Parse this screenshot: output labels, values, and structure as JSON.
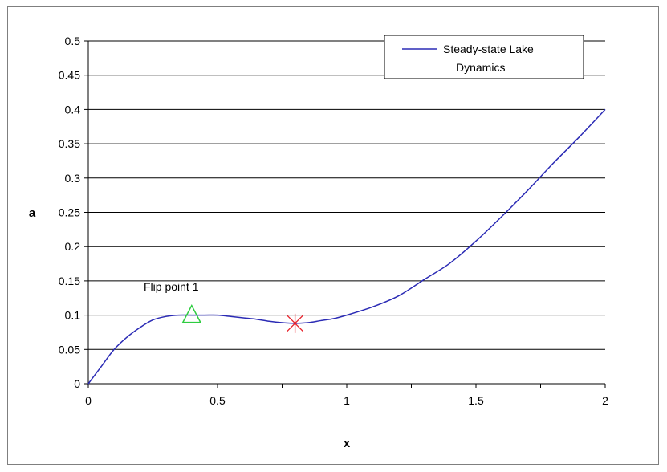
{
  "chart_data": {
    "type": "line",
    "title": "",
    "xlabel": "x",
    "ylabel": "a",
    "xlim": [
      0,
      2
    ],
    "ylim": [
      0,
      0.5
    ],
    "x_ticks": [
      "0",
      "0.5",
      "1",
      "1.5",
      "2"
    ],
    "y_ticks": [
      "0",
      "0.05",
      "0.1",
      "0.15",
      "0.2",
      "0.25",
      "0.3",
      "0.35",
      "0.4",
      "0.45",
      "0.5"
    ],
    "grid": "horizontal",
    "legend": {
      "placement": "top-right",
      "entries": [
        "Steady-state Lake",
        "Dynamics"
      ]
    },
    "series": [
      {
        "name": "Steady-state Lake Dynamics",
        "color": "#2b2bb5",
        "x": [
          0,
          0.05,
          0.1,
          0.15,
          0.2,
          0.25,
          0.3,
          0.35,
          0.4,
          0.45,
          0.5,
          0.55,
          0.6,
          0.65,
          0.7,
          0.75,
          0.8,
          0.85,
          0.9,
          0.95,
          1.0,
          1.1,
          1.2,
          1.3,
          1.4,
          1.5,
          1.6,
          1.7,
          1.8,
          1.9,
          2.0
        ],
        "y": [
          0,
          0.025,
          0.05,
          0.068,
          0.082,
          0.093,
          0.098,
          0.1,
          0.1,
          0.1,
          0.1,
          0.098,
          0.096,
          0.094,
          0.091,
          0.089,
          0.088,
          0.089,
          0.092,
          0.095,
          0.1,
          0.112,
          0.128,
          0.152,
          0.176,
          0.208,
          0.244,
          0.282,
          0.322,
          0.36,
          0.4
        ]
      }
    ],
    "markers": [
      {
        "name": "flip-point-1",
        "shape": "triangle",
        "color": "#2ecc40",
        "x": 0.4,
        "y": 0.1,
        "label": "Flip point 1"
      },
      {
        "name": "star-marker",
        "shape": "asterisk",
        "color": "#e8202a",
        "x": 0.8,
        "y": 0.088
      }
    ]
  }
}
